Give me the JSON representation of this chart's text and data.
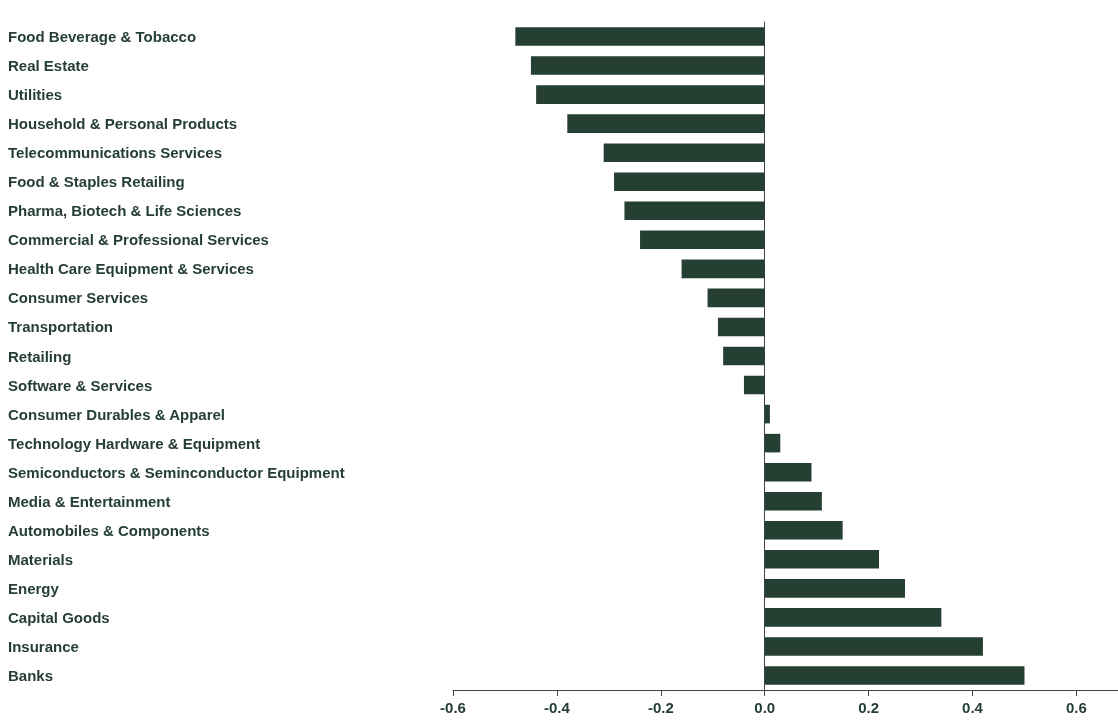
{
  "chart_data": {
    "type": "bar",
    "orientation": "horizontal",
    "color": "#263f33",
    "categories": [
      "Food Beverage & Tobacco",
      "Real Estate",
      "Utilities",
      "Household & Personal Products",
      "Telecommunications Services",
      "Food & Staples Retailing",
      "Pharma, Biotech & Life Sciences",
      "Commercial & Professional Services",
      "Health Care Equipment & Services",
      "Consumer Services",
      "Transportation",
      "Retailing",
      "Software & Services",
      "Consumer Durables & Apparel",
      "Technology Hardware & Equipment",
      "Semiconductors & Seminconductor Equipment",
      "Media & Entertainment",
      "Automobiles & Components",
      "Materials",
      "Energy",
      "Capital Goods",
      "Insurance",
      "Banks"
    ],
    "values": [
      -0.48,
      -0.45,
      -0.44,
      -0.38,
      -0.31,
      -0.29,
      -0.27,
      -0.24,
      -0.16,
      -0.11,
      -0.09,
      -0.08,
      -0.04,
      0.01,
      0.03,
      0.09,
      0.11,
      0.15,
      0.22,
      0.27,
      0.34,
      0.42,
      0.5
    ],
    "xlim": [
      -0.6,
      0.68
    ],
    "xticks": [
      {
        "value": -0.6,
        "label": "-0.6"
      },
      {
        "value": -0.4,
        "label": "-0.4"
      },
      {
        "value": -0.2,
        "label": "-0.2"
      },
      {
        "value": 0,
        "label": "0.0"
      },
      {
        "value": 0.2,
        "label": "0.2"
      },
      {
        "value": 0.4,
        "label": "0.4"
      },
      {
        "value": 0.6,
        "label": "0.6"
      }
    ]
  }
}
